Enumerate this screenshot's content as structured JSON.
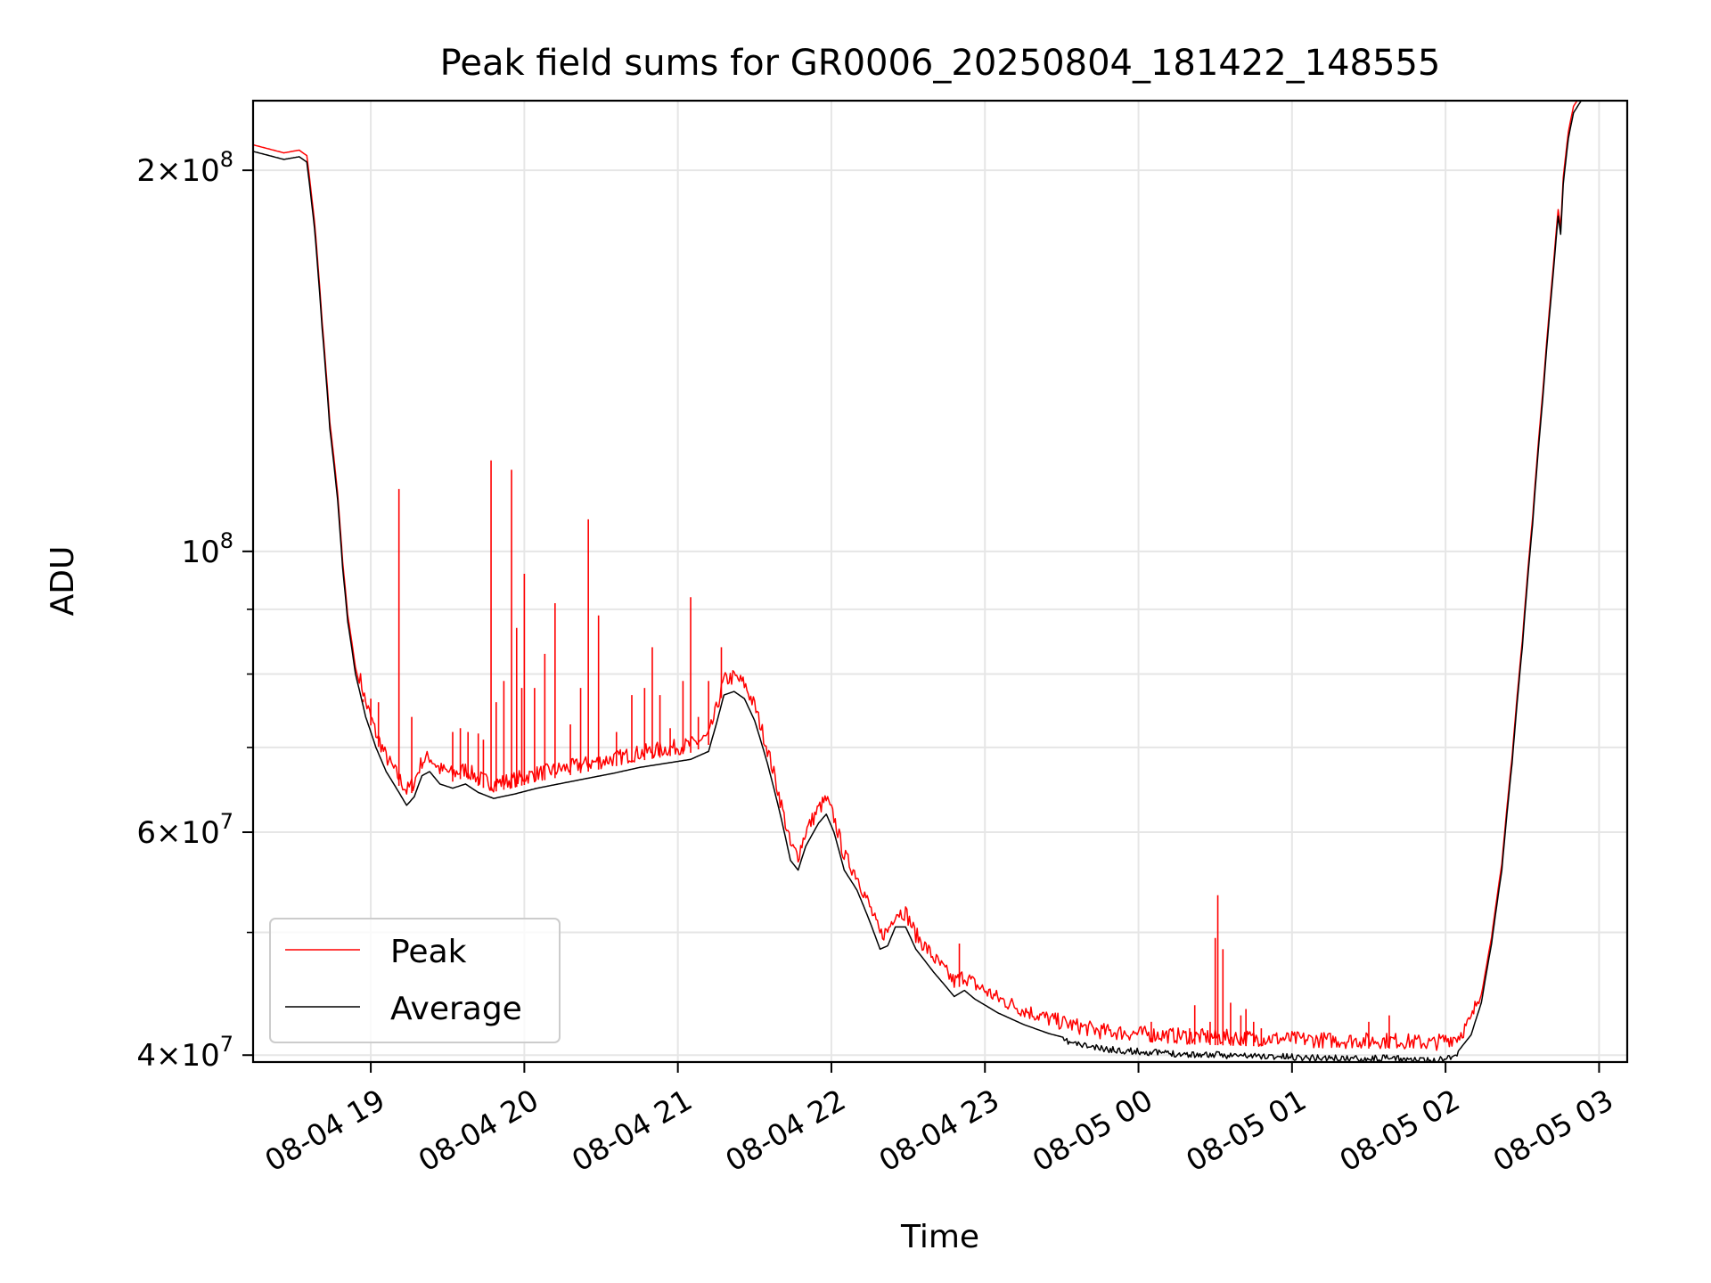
{
  "chart_data": {
    "type": "line",
    "title": "Peak field sums for GR0006_20250804_181422_148555",
    "xlabel": "Time",
    "ylabel": "ADU",
    "yscale": "log",
    "grid": true,
    "legend_position": "lower-left",
    "xlim": [
      "2025-08-04 18:14",
      "2025-08-05 03:11"
    ],
    "ylim": [
      39500000,
      227000000
    ],
    "x_ticks": [
      {
        "t": "2025-08-04 19:00",
        "label": "08-04 19"
      },
      {
        "t": "2025-08-04 20:00",
        "label": "08-04 20"
      },
      {
        "t": "2025-08-04 21:00",
        "label": "08-04 21"
      },
      {
        "t": "2025-08-04 22:00",
        "label": "08-04 22"
      },
      {
        "t": "2025-08-04 23:00",
        "label": "08-04 23"
      },
      {
        "t": "2025-08-05 00:00",
        "label": "08-05 00"
      },
      {
        "t": "2025-08-05 01:00",
        "label": "08-05 01"
      },
      {
        "t": "2025-08-05 02:00",
        "label": "08-05 02"
      },
      {
        "t": "2025-08-05 03:00",
        "label": "08-05 03"
      }
    ],
    "y_ticks": [
      {
        "v": 40000000,
        "base": "4×10",
        "exp": "7"
      },
      {
        "v": 60000000,
        "base": "6×10",
        "exp": "7"
      },
      {
        "v": 100000000,
        "base": "10",
        "exp": "8"
      },
      {
        "v": 200000000,
        "base": "2×10",
        "exp": "8"
      }
    ],
    "y_minor_ticks": [
      50000000,
      70000000,
      80000000,
      90000000
    ],
    "series": [
      {
        "name": "Average",
        "color": "#000000",
        "points": [
          [
            "2025-08-04 18:14",
            207000000
          ],
          [
            "2025-08-04 18:20",
            205500000
          ],
          [
            "2025-08-04 18:26",
            204000000
          ],
          [
            "2025-08-04 18:32",
            205000000
          ],
          [
            "2025-08-04 18:35",
            203000000
          ],
          [
            "2025-08-04 18:38",
            180000000
          ],
          [
            "2025-08-04 18:41",
            150000000
          ],
          [
            "2025-08-04 18:44",
            125000000
          ],
          [
            "2025-08-04 18:47",
            110000000
          ],
          [
            "2025-08-04 18:49",
            97000000
          ],
          [
            "2025-08-04 18:51",
            88000000
          ],
          [
            "2025-08-04 18:54",
            80000000
          ],
          [
            "2025-08-04 18:58",
            74000000
          ],
          [
            "2025-08-04 19:02",
            70000000
          ],
          [
            "2025-08-04 19:06",
            67000000
          ],
          [
            "2025-08-04 19:11",
            64500000
          ],
          [
            "2025-08-04 19:14",
            63000000
          ],
          [
            "2025-08-04 19:17",
            64000000
          ],
          [
            "2025-08-04 19:20",
            66500000
          ],
          [
            "2025-08-04 19:23",
            67000000
          ],
          [
            "2025-08-04 19:27",
            65500000
          ],
          [
            "2025-08-04 19:32",
            65000000
          ],
          [
            "2025-08-04 19:37",
            65500000
          ],
          [
            "2025-08-04 19:42",
            64500000
          ],
          [
            "2025-08-04 19:48",
            63800000
          ],
          [
            "2025-08-04 19:56",
            64300000
          ],
          [
            "2025-08-04 20:05",
            65000000
          ],
          [
            "2025-08-04 20:15",
            65600000
          ],
          [
            "2025-08-04 20:25",
            66200000
          ],
          [
            "2025-08-04 20:35",
            66800000
          ],
          [
            "2025-08-04 20:45",
            67500000
          ],
          [
            "2025-08-04 20:55",
            68000000
          ],
          [
            "2025-08-04 21:05",
            68500000
          ],
          [
            "2025-08-04 21:12",
            69500000
          ],
          [
            "2025-08-04 21:15",
            73000000
          ],
          [
            "2025-08-04 21:18",
            77000000
          ],
          [
            "2025-08-04 21:22",
            77500000
          ],
          [
            "2025-08-04 21:26",
            76500000
          ],
          [
            "2025-08-04 21:30",
            73500000
          ],
          [
            "2025-08-04 21:35",
            68000000
          ],
          [
            "2025-08-04 21:40",
            62000000
          ],
          [
            "2025-08-04 21:44",
            57000000
          ],
          [
            "2025-08-04 21:47",
            56000000
          ],
          [
            "2025-08-04 21:50",
            58500000
          ],
          [
            "2025-08-04 21:55",
            61000000
          ],
          [
            "2025-08-04 21:58",
            62000000
          ],
          [
            "2025-08-04 22:01",
            60000000
          ],
          [
            "2025-08-04 22:05",
            56000000
          ],
          [
            "2025-08-04 22:10",
            54000000
          ],
          [
            "2025-08-04 22:15",
            51000000
          ],
          [
            "2025-08-04 22:19",
            48500000
          ],
          [
            "2025-08-04 22:22",
            48800000
          ],
          [
            "2025-08-04 22:25",
            50500000
          ],
          [
            "2025-08-04 22:29",
            50500000
          ],
          [
            "2025-08-04 22:33",
            48500000
          ],
          [
            "2025-08-04 22:40",
            46500000
          ],
          [
            "2025-08-04 22:48",
            44500000
          ],
          [
            "2025-08-04 22:52",
            45000000
          ],
          [
            "2025-08-04 22:56",
            44300000
          ],
          [
            "2025-08-04 23:05",
            43200000
          ],
          [
            "2025-08-04 23:15",
            42300000
          ],
          [
            "2025-08-04 23:25",
            41600000
          ],
          [
            "2025-08-04 23:35",
            41100000
          ],
          [
            "2025-08-04 23:45",
            40700000
          ],
          [
            "2025-08-05 00:00",
            40500000
          ],
          [
            "2025-08-05 00:20",
            40300000
          ],
          [
            "2025-08-05 00:40",
            40200000
          ],
          [
            "2025-08-05 01:00",
            40100000
          ],
          [
            "2025-08-05 01:20",
            40000000
          ],
          [
            "2025-08-05 01:40",
            40000000
          ],
          [
            "2025-08-05 01:55",
            39800000
          ],
          [
            "2025-08-05 02:05",
            40300000
          ],
          [
            "2025-08-05 02:10",
            41500000
          ],
          [
            "2025-08-05 02:14",
            44000000
          ],
          [
            "2025-08-05 02:18",
            49000000
          ],
          [
            "2025-08-05 02:22",
            56000000
          ],
          [
            "2025-08-05 02:26",
            68000000
          ],
          [
            "2025-08-05 02:30",
            84000000
          ],
          [
            "2025-08-05 02:34",
            105000000
          ],
          [
            "2025-08-05 02:38",
            132000000
          ],
          [
            "2025-08-05 02:42",
            165000000
          ],
          [
            "2025-08-05 02:44",
            184000000
          ],
          [
            "2025-08-05 02:45",
            178000000
          ],
          [
            "2025-08-05 02:46",
            195000000
          ],
          [
            "2025-08-05 02:48",
            212000000
          ],
          [
            "2025-08-05 02:50",
            222000000
          ],
          [
            "2025-08-05 02:53",
            227000000
          ]
        ]
      },
      {
        "name": "Peak",
        "color": "#ff0000",
        "offset_ratio": 1.012,
        "spikes": [
          [
            "2025-08-04 18:57",
            76000000
          ],
          [
            "2025-08-04 19:00",
            76500000
          ],
          [
            "2025-08-04 19:03",
            76000000
          ],
          [
            "2025-08-04 19:11",
            112000000
          ],
          [
            "2025-08-04 19:16",
            74000000
          ],
          [
            "2025-08-04 19:32",
            72000000
          ],
          [
            "2025-08-04 19:35",
            72500000
          ],
          [
            "2025-08-04 19:38",
            72000000
          ],
          [
            "2025-08-04 19:42",
            71800000
          ],
          [
            "2025-08-04 19:44",
            71000000
          ],
          [
            "2025-08-04 19:47",
            118000000
          ],
          [
            "2025-08-04 19:49",
            76000000
          ],
          [
            "2025-08-04 19:52",
            79000000
          ],
          [
            "2025-08-04 19:55",
            116000000
          ],
          [
            "2025-08-04 19:57",
            87000000
          ],
          [
            "2025-08-04 19:59",
            78000000
          ],
          [
            "2025-08-04 20:00",
            96000000
          ],
          [
            "2025-08-04 20:04",
            78000000
          ],
          [
            "2025-08-04 20:08",
            83000000
          ],
          [
            "2025-08-04 20:12",
            91000000
          ],
          [
            "2025-08-04 20:18",
            73000000
          ],
          [
            "2025-08-04 20:22",
            78000000
          ],
          [
            "2025-08-04 20:25",
            106000000
          ],
          [
            "2025-08-04 20:29",
            89000000
          ],
          [
            "2025-08-04 20:36",
            72000000
          ],
          [
            "2025-08-04 20:42",
            77000000
          ],
          [
            "2025-08-04 20:47",
            78000000
          ],
          [
            "2025-08-04 20:50",
            84000000
          ],
          [
            "2025-08-04 20:53",
            77000000
          ],
          [
            "2025-08-04 20:57",
            72500000
          ],
          [
            "2025-08-04 21:02",
            79000000
          ],
          [
            "2025-08-04 21:05",
            92000000
          ],
          [
            "2025-08-04 21:08",
            74000000
          ],
          [
            "2025-08-04 21:12",
            79000000
          ],
          [
            "2025-08-04 21:17",
            84000000
          ],
          [
            "2025-08-04 22:50",
            49000000
          ],
          [
            "2025-08-05 00:05",
            42500000
          ],
          [
            "2025-08-05 00:20",
            42000000
          ],
          [
            "2025-08-05 00:22",
            43800000
          ],
          [
            "2025-08-05 00:28",
            42500000
          ],
          [
            "2025-08-05 00:30",
            49500000
          ],
          [
            "2025-08-05 00:31",
            53500000
          ],
          [
            "2025-08-05 00:33",
            48500000
          ],
          [
            "2025-08-05 00:36",
            44000000
          ],
          [
            "2025-08-05 00:40",
            43000000
          ],
          [
            "2025-08-05 00:42",
            43500000
          ],
          [
            "2025-08-05 00:45",
            42500000
          ],
          [
            "2025-08-05 00:48",
            42000000
          ],
          [
            "2025-08-05 01:30",
            42500000
          ],
          [
            "2025-08-05 01:38",
            43000000
          ]
        ]
      }
    ]
  }
}
